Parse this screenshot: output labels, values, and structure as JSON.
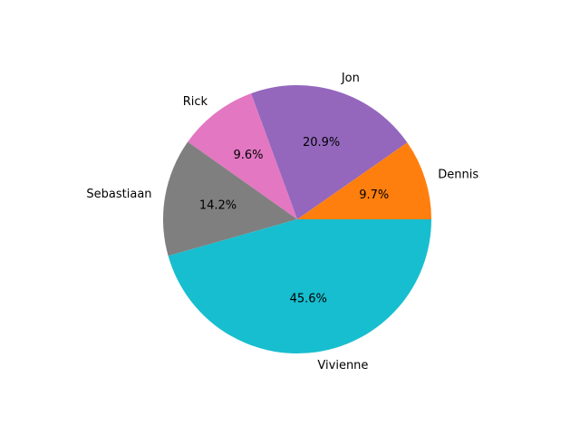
{
  "chart_data": {
    "type": "pie",
    "categories": [
      "Dennis",
      "Jon",
      "Rick",
      "Sebastiaan",
      "Vivienne"
    ],
    "values": [
      9.7,
      20.9,
      9.6,
      14.2,
      45.6
    ],
    "value_labels": [
      "9.7%",
      "20.9%",
      "9.6%",
      "14.2%",
      "45.6%"
    ],
    "colors": [
      "#ff7f0e",
      "#9467bd",
      "#e377c2",
      "#7f7f7f",
      "#17becf"
    ],
    "start_angle_deg": 0,
    "direction": "counterclockwise",
    "title": "",
    "legend": "none"
  }
}
